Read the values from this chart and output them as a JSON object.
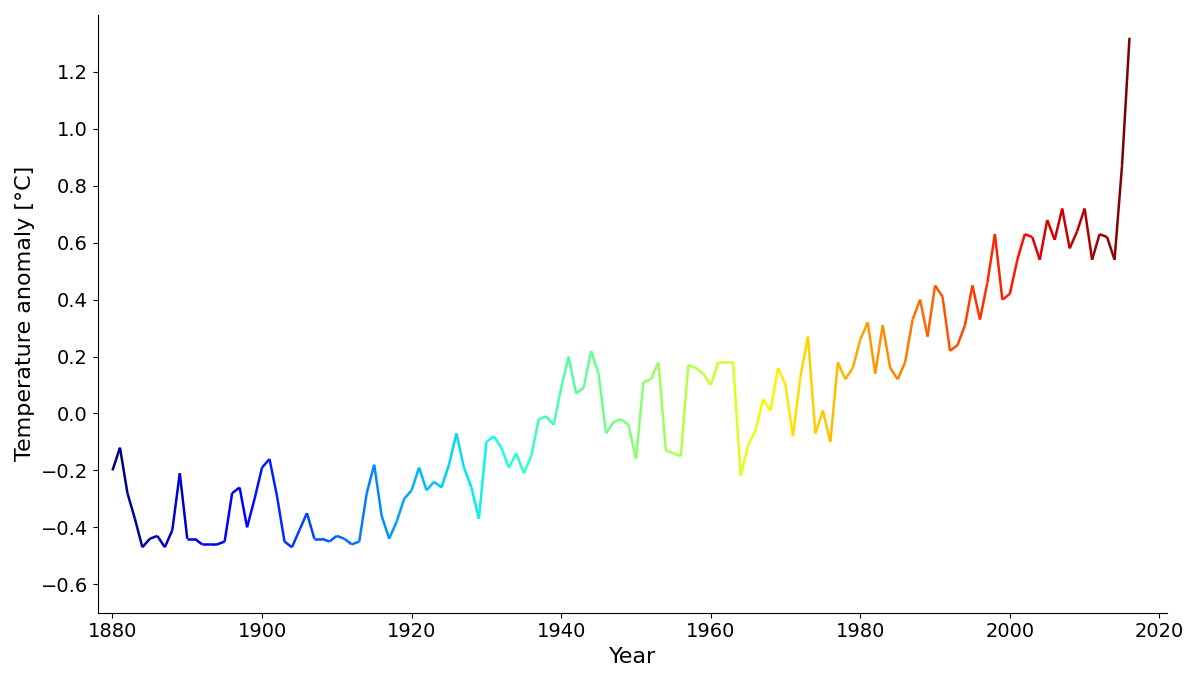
{
  "xlabel": "Year",
  "ylabel": "Temperature anomaly [°C]",
  "xlim": [
    1878,
    2021
  ],
  "ylim": [
    -0.7,
    1.4
  ],
  "xticks": [
    1880,
    1900,
    1920,
    1940,
    1960,
    1980,
    2000,
    2020
  ],
  "yticks": [
    -0.6,
    -0.4,
    -0.2,
    0.0,
    0.2,
    0.4,
    0.6,
    0.8,
    1.0,
    1.2
  ],
  "years": [
    1880,
    1881,
    1882,
    1883,
    1884,
    1885,
    1886,
    1887,
    1888,
    1889,
    1890,
    1891,
    1892,
    1893,
    1894,
    1895,
    1896,
    1897,
    1898,
    1899,
    1900,
    1901,
    1902,
    1903,
    1904,
    1905,
    1906,
    1907,
    1908,
    1909,
    1910,
    1911,
    1912,
    1913,
    1914,
    1915,
    1916,
    1917,
    1918,
    1919,
    1920,
    1921,
    1922,
    1923,
    1924,
    1925,
    1926,
    1927,
    1928,
    1929,
    1930,
    1931,
    1932,
    1933,
    1934,
    1935,
    1936,
    1937,
    1938,
    1939,
    1940,
    1941,
    1942,
    1943,
    1944,
    1945,
    1946,
    1947,
    1948,
    1949,
    1950,
    1951,
    1952,
    1953,
    1954,
    1955,
    1956,
    1957,
    1958,
    1959,
    1960,
    1961,
    1962,
    1963,
    1964,
    1965,
    1966,
    1967,
    1968,
    1969,
    1970,
    1971,
    1972,
    1973,
    1974,
    1975,
    1976,
    1977,
    1978,
    1979,
    1980,
    1981,
    1982,
    1983,
    1984,
    1985,
    1986,
    1987,
    1988,
    1989,
    1990,
    1991,
    1992,
    1993,
    1994,
    1995,
    1996,
    1997,
    1998,
    1999,
    2000,
    2001,
    2002,
    2003,
    2004,
    2005,
    2006,
    2007,
    2008,
    2009,
    2010,
    2011,
    2012,
    2013,
    2014,
    2015,
    2016
  ],
  "anomalies": [
    -0.2,
    -0.12,
    -0.28,
    -0.37,
    -0.47,
    -0.44,
    -0.43,
    -0.47,
    -0.41,
    -0.21,
    -0.44,
    -0.44,
    -0.46,
    -0.46,
    -0.46,
    -0.45,
    -0.28,
    -0.26,
    -0.4,
    -0.3,
    -0.19,
    -0.16,
    -0.29,
    -0.45,
    -0.47,
    -0.41,
    -0.35,
    -0.44,
    -0.44,
    -0.45,
    -0.43,
    -0.44,
    -0.46,
    -0.45,
    -0.28,
    -0.18,
    -0.36,
    -0.44,
    -0.38,
    -0.3,
    -0.27,
    -0.19,
    -0.27,
    -0.24,
    -0.26,
    -0.18,
    -0.07,
    -0.19,
    -0.26,
    -0.37,
    -0.1,
    -0.08,
    -0.12,
    -0.19,
    -0.14,
    -0.21,
    -0.15,
    -0.02,
    -0.01,
    -0.04,
    0.09,
    0.2,
    0.07,
    0.09,
    0.22,
    0.14,
    -0.07,
    -0.03,
    -0.02,
    -0.04,
    -0.16,
    0.11,
    0.12,
    0.18,
    -0.13,
    -0.14,
    -0.15,
    0.17,
    0.16,
    0.14,
    0.1,
    0.18,
    0.18,
    0.18,
    -0.22,
    -0.11,
    -0.06,
    0.05,
    0.01,
    0.16,
    0.1,
    -0.08,
    0.13,
    0.27,
    -0.07,
    0.01,
    -0.1,
    0.18,
    0.12,
    0.16,
    0.26,
    0.32,
    0.14,
    0.31,
    0.16,
    0.12,
    0.18,
    0.33,
    0.4,
    0.27,
    0.45,
    0.41,
    0.22,
    0.24,
    0.31,
    0.45,
    0.33,
    0.46,
    0.63,
    0.4,
    0.42,
    0.54,
    0.63,
    0.62,
    0.54,
    0.68,
    0.61,
    0.72,
    0.58,
    0.64,
    0.72,
    0.54,
    0.63,
    0.62,
    0.54,
    0.87,
    1.32
  ],
  "line_width": 1.8,
  "background_color": "#ffffff",
  "label_fontsize": 16,
  "tick_fontsize": 14
}
